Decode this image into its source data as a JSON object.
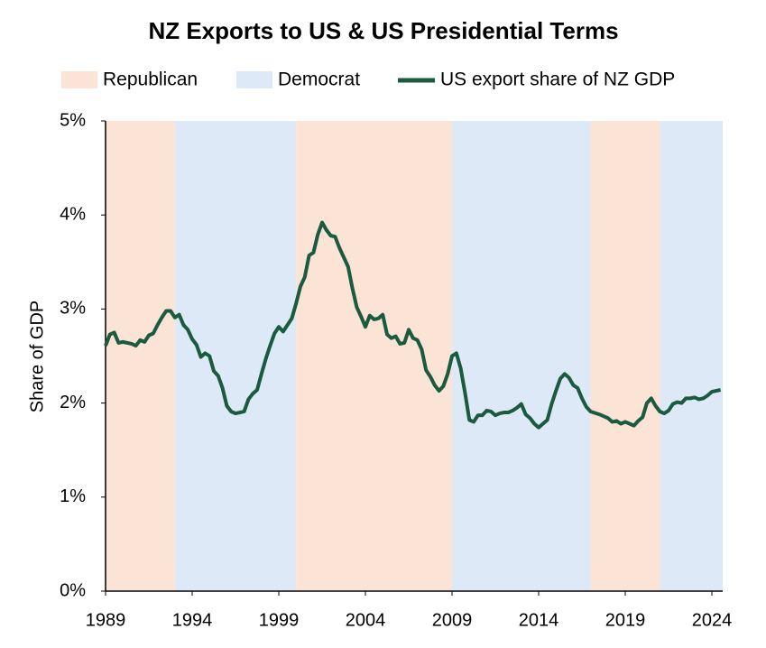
{
  "chart_data": {
    "type": "line",
    "title": "NZ Exports to US & US Presidential Terms",
    "y_label": "Share of GDP",
    "xlim": [
      1989,
      2024.625
    ],
    "xticks": [
      1989,
      1994,
      1999,
      2004,
      2009,
      2014,
      2019,
      2024
    ],
    "ylim": [
      0,
      5
    ],
    "yticks": [
      {
        "value": 0,
        "label": "0%"
      },
      {
        "value": 1,
        "label": "1%"
      },
      {
        "value": 2,
        "label": "2%"
      },
      {
        "value": 3,
        "label": "3%"
      },
      {
        "value": 4,
        "label": "4%"
      },
      {
        "value": 5,
        "label": "5%"
      }
    ],
    "shading": [
      {
        "name": "Republican",
        "color": "#fbe3d6",
        "spans": [
          [
            1989,
            1993
          ],
          [
            2000,
            2009
          ],
          [
            2017,
            2021
          ]
        ]
      },
      {
        "name": "Democrat",
        "color": "#dde9f6",
        "spans": [
          [
            1993,
            2000
          ],
          [
            2009,
            2017
          ],
          [
            2021,
            2024.625
          ]
        ]
      }
    ],
    "x": [
      1989.0,
      1989.25,
      1989.5,
      1989.75,
      1990.0,
      1990.5,
      1990.75,
      1991.0,
      1991.25,
      1991.5,
      1991.75,
      1992.0,
      1992.25,
      1992.5,
      1992.75,
      1993.0,
      1993.25,
      1993.5,
      1993.75,
      1994.0,
      1994.25,
      1994.5,
      1994.75,
      1995.0,
      1995.25,
      1995.5,
      1995.75,
      1996.0,
      1996.25,
      1996.5,
      1996.75,
      1997.0,
      1997.25,
      1997.5,
      1997.75,
      1998.0,
      1998.25,
      1998.5,
      1998.75,
      1999.0,
      1999.25,
      1999.5,
      1999.75,
      2000.0,
      2000.25,
      2000.5,
      2000.75,
      2001.0,
      2001.25,
      2001.5,
      2001.75,
      2002.0,
      2002.25,
      2002.5,
      2002.75,
      2003.0,
      2003.25,
      2003.5,
      2003.75,
      2004.0,
      2004.25,
      2004.5,
      2004.75,
      2005.0,
      2005.25,
      2005.5,
      2005.75,
      2006.0,
      2006.25,
      2006.5,
      2006.75,
      2007.0,
      2007.25,
      2007.5,
      2007.75,
      2008.0,
      2008.25,
      2008.5,
      2008.75,
      2009.0,
      2009.25,
      2009.5,
      2009.75,
      2010.0,
      2010.25,
      2010.5,
      2010.75,
      2011.0,
      2011.25,
      2011.5,
      2011.75,
      2012.0,
      2012.25,
      2012.5,
      2012.75,
      2013.0,
      2013.25,
      2013.5,
      2013.75,
      2014.0,
      2014.25,
      2014.5,
      2014.75,
      2015.0,
      2015.25,
      2015.5,
      2015.75,
      2016.0,
      2016.25,
      2016.5,
      2016.75,
      2017.0,
      2017.5,
      2018.0,
      2018.25,
      2018.5,
      2018.75,
      2019.0,
      2019.25,
      2019.5,
      2019.75,
      2020.0,
      2020.25,
      2020.5,
      2020.75,
      2021.0,
      2021.25,
      2021.5,
      2021.75,
      2022.0,
      2022.25,
      2022.5,
      2022.75,
      2023.0,
      2023.25,
      2023.5,
      2023.75,
      2024.0,
      2024.5
    ],
    "series": [
      {
        "name": "US export share of NZ GDP",
        "color": "#1a5a3f",
        "values": [
          2.61,
          2.73,
          2.75,
          2.64,
          2.65,
          2.63,
          2.61,
          2.67,
          2.65,
          2.72,
          2.74,
          2.83,
          2.91,
          2.98,
          2.98,
          2.91,
          2.94,
          2.83,
          2.78,
          2.68,
          2.62,
          2.49,
          2.53,
          2.5,
          2.34,
          2.29,
          2.16,
          1.97,
          1.91,
          1.89,
          1.9,
          1.91,
          2.04,
          2.1,
          2.14,
          2.31,
          2.47,
          2.61,
          2.74,
          2.81,
          2.76,
          2.83,
          2.9,
          3.06,
          3.24,
          3.34,
          3.57,
          3.6,
          3.79,
          3.92,
          3.84,
          3.78,
          3.77,
          3.65,
          3.55,
          3.45,
          3.22,
          3.02,
          2.92,
          2.81,
          2.93,
          2.89,
          2.9,
          2.94,
          2.73,
          2.69,
          2.71,
          2.63,
          2.64,
          2.78,
          2.69,
          2.67,
          2.57,
          2.35,
          2.28,
          2.19,
          2.13,
          2.18,
          2.31,
          2.5,
          2.53,
          2.37,
          2.11,
          1.82,
          1.8,
          1.87,
          1.87,
          1.92,
          1.91,
          1.87,
          1.89,
          1.9,
          1.9,
          1.92,
          1.95,
          1.99,
          1.88,
          1.84,
          1.78,
          1.74,
          1.78,
          1.82,
          1.99,
          2.13,
          2.26,
          2.31,
          2.27,
          2.19,
          2.16,
          2.05,
          1.96,
          1.91,
          1.88,
          1.84,
          1.8,
          1.81,
          1.78,
          1.8,
          1.78,
          1.76,
          1.81,
          1.85,
          2.0,
          2.05,
          1.97,
          1.91,
          1.89,
          1.92,
          1.99,
          2.01,
          2.0,
          2.05,
          2.05,
          2.06,
          2.04,
          2.05,
          2.08,
          2.12,
          2.14
        ]
      }
    ]
  }
}
